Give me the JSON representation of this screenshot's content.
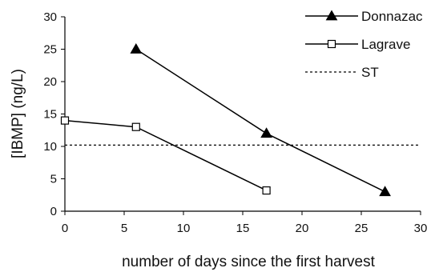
{
  "chart_data": {
    "type": "line",
    "xlabel": "number of days since the first harvest",
    "ylabel": "[IBMP] (ng/L)",
    "xlim": [
      0,
      30
    ],
    "ylim": [
      0,
      30
    ],
    "xticks": [
      0,
      5,
      10,
      15,
      20,
      25,
      30
    ],
    "yticks": [
      0,
      5,
      10,
      15,
      20,
      25,
      30
    ],
    "grid": false,
    "legend_position": "top-right",
    "series": [
      {
        "name": "Donnazac",
        "marker": "filled-triangle",
        "line": "solid",
        "color": "#000000",
        "points": [
          {
            "x": 6,
            "y": 25
          },
          {
            "x": 17,
            "y": 12
          },
          {
            "x": 27,
            "y": 3
          }
        ]
      },
      {
        "name": "Lagrave",
        "marker": "open-square",
        "line": "solid",
        "color": "#000000",
        "points": [
          {
            "x": 0,
            "y": 14
          },
          {
            "x": 6,
            "y": 13
          },
          {
            "x": 17,
            "y": 3.2
          }
        ]
      },
      {
        "name": "ST",
        "marker": "none",
        "line": "dotted",
        "color": "#000000",
        "points": [
          {
            "x": 0,
            "y": 10.2
          },
          {
            "x": 30,
            "y": 10.2
          }
        ]
      }
    ]
  }
}
